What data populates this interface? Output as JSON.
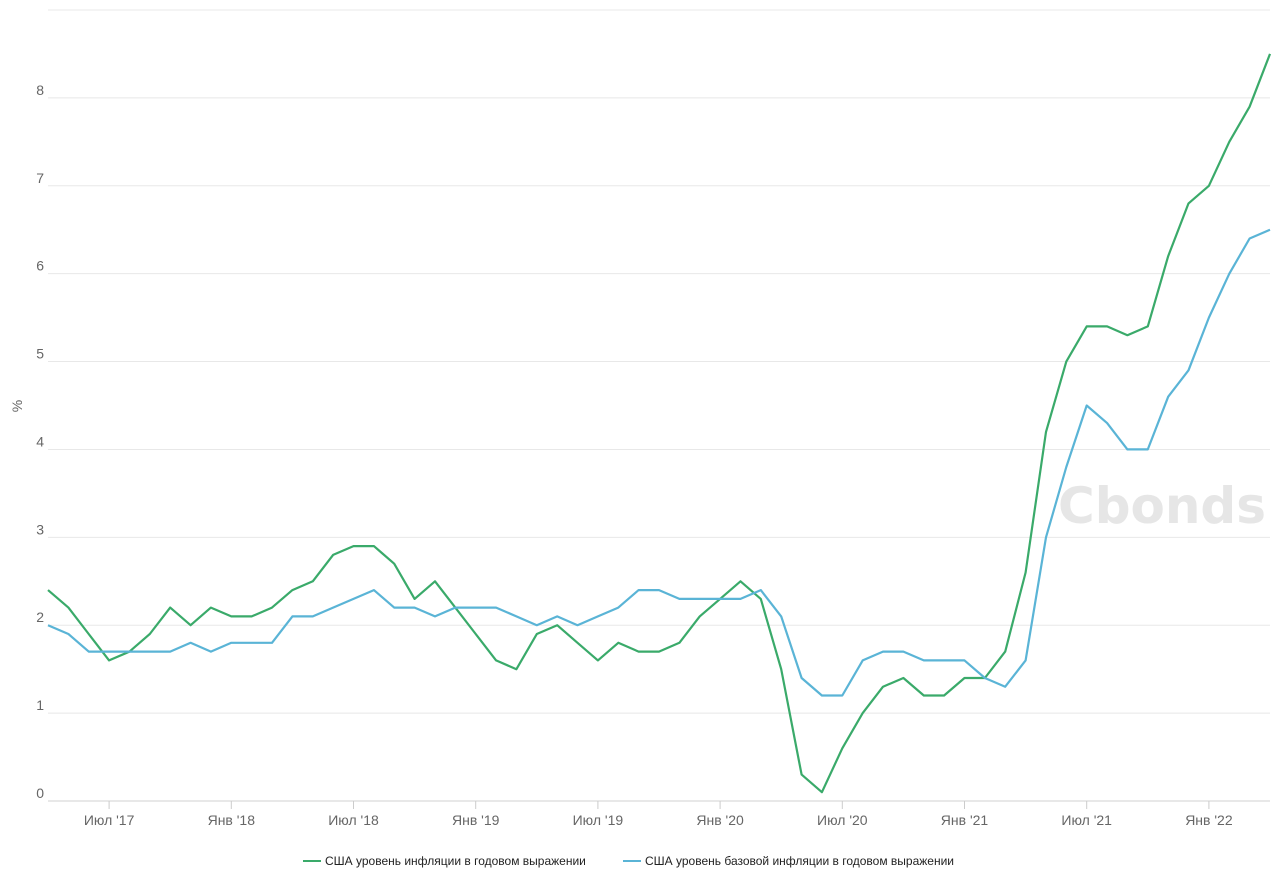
{
  "chart_data": {
    "type": "line",
    "ylabel": "%",
    "ylim": [
      0,
      9
    ],
    "yticks": [
      0,
      1,
      2,
      3,
      4,
      5,
      6,
      7,
      8
    ],
    "ytick_labels": [
      "0",
      "1",
      "2",
      "3",
      "4",
      "5",
      "6",
      "7",
      "8"
    ],
    "xtick_labels": [
      "Июл '17",
      "Янв '18",
      "Июл '18",
      "Янв '19",
      "Июл '19",
      "Янв '20",
      "Июл '20",
      "Янв '21",
      "Июл '21",
      "Янв '22"
    ],
    "x_start": "2017-04",
    "x_end": "2022-03",
    "grid": true,
    "legend_position": "bottom",
    "watermark": "Cbonds",
    "series": [
      {
        "name": "США уровень инфляции в годовом выражении",
        "color": "#3aaa6a",
        "values": [
          2.4,
          2.2,
          1.9,
          1.6,
          1.7,
          1.9,
          2.2,
          2.0,
          2.2,
          2.1,
          2.1,
          2.2,
          2.4,
          2.5,
          2.8,
          2.9,
          2.9,
          2.7,
          2.3,
          2.5,
          2.2,
          1.9,
          1.6,
          1.5,
          1.9,
          2.0,
          1.8,
          1.6,
          1.8,
          1.7,
          1.7,
          1.8,
          2.1,
          2.3,
          2.5,
          2.3,
          1.5,
          0.3,
          0.1,
          0.6,
          1.0,
          1.3,
          1.4,
          1.2,
          1.2,
          1.4,
          1.4,
          1.7,
          2.6,
          4.2,
          5.0,
          5.4,
          5.4,
          5.3,
          5.4,
          6.2,
          6.8,
          7.0,
          7.5,
          7.9,
          8.5
        ]
      },
      {
        "name": "США уровень базовой инфляции в годовом выражении",
        "color": "#5ab4d6",
        "values": [
          2.0,
          1.9,
          1.7,
          1.7,
          1.7,
          1.7,
          1.7,
          1.8,
          1.7,
          1.8,
          1.8,
          1.8,
          2.1,
          2.1,
          2.2,
          2.3,
          2.4,
          2.2,
          2.2,
          2.1,
          2.2,
          2.2,
          2.2,
          2.1,
          2.0,
          2.1,
          2.0,
          2.1,
          2.2,
          2.4,
          2.4,
          2.3,
          2.3,
          2.3,
          2.3,
          2.4,
          2.1,
          1.4,
          1.2,
          1.2,
          1.6,
          1.7,
          1.7,
          1.6,
          1.6,
          1.6,
          1.4,
          1.3,
          1.6,
          3.0,
          3.8,
          4.5,
          4.3,
          4.0,
          4.0,
          4.6,
          4.9,
          5.5,
          6.0,
          6.4,
          6.5
        ]
      }
    ]
  }
}
